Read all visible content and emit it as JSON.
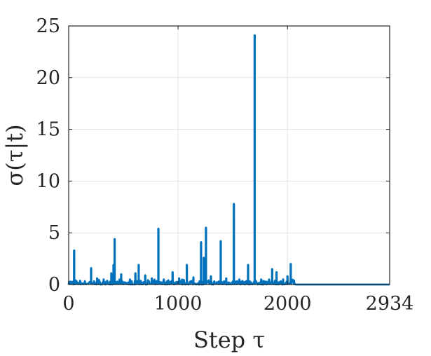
{
  "chart_data": {
    "type": "line",
    "xlabel": "Step τ",
    "ylabel": "σ(τ|t)",
    "xlim": [
      0,
      2934
    ],
    "ylim": [
      0,
      25
    ],
    "xticks": [
      0,
      1000,
      2000,
      2934
    ],
    "yticks": [
      0,
      5,
      10,
      15,
      20,
      25
    ],
    "grid": true,
    "line_color": "#0072BD",
    "series": [
      {
        "baseline_noise_max": 0.5,
        "baseline_end_x": 2070,
        "tail_value": 0,
        "peaks": [
          {
            "x": 50,
            "y": 3.3
          },
          {
            "x": 205,
            "y": 1.6
          },
          {
            "x": 260,
            "y": 0.6
          },
          {
            "x": 320,
            "y": 0.5
          },
          {
            "x": 390,
            "y": 1.1
          },
          {
            "x": 420,
            "y": 4.4
          },
          {
            "x": 410,
            "y": 1.9
          },
          {
            "x": 480,
            "y": 1.0
          },
          {
            "x": 560,
            "y": 0.5
          },
          {
            "x": 610,
            "y": 1.1
          },
          {
            "x": 640,
            "y": 1.9
          },
          {
            "x": 700,
            "y": 0.9
          },
          {
            "x": 760,
            "y": 0.6
          },
          {
            "x": 820,
            "y": 5.4
          },
          {
            "x": 870,
            "y": 0.5
          },
          {
            "x": 950,
            "y": 1.2
          },
          {
            "x": 1010,
            "y": 0.6
          },
          {
            "x": 1080,
            "y": 1.9
          },
          {
            "x": 1140,
            "y": 0.7
          },
          {
            "x": 1210,
            "y": 4.1
          },
          {
            "x": 1235,
            "y": 2.6
          },
          {
            "x": 1255,
            "y": 5.5
          },
          {
            "x": 1300,
            "y": 0.8
          },
          {
            "x": 1390,
            "y": 4.2
          },
          {
            "x": 1440,
            "y": 0.6
          },
          {
            "x": 1510,
            "y": 7.8
          },
          {
            "x": 1560,
            "y": 0.5
          },
          {
            "x": 1640,
            "y": 1.9
          },
          {
            "x": 1700,
            "y": 24.1
          },
          {
            "x": 1760,
            "y": 0.5
          },
          {
            "x": 1860,
            "y": 1.5
          },
          {
            "x": 1900,
            "y": 1.2
          },
          {
            "x": 1960,
            "y": 0.5
          },
          {
            "x": 2000,
            "y": 0.8
          },
          {
            "x": 2030,
            "y": 2.0
          },
          {
            "x": 2060,
            "y": 0.4
          }
        ]
      }
    ]
  }
}
